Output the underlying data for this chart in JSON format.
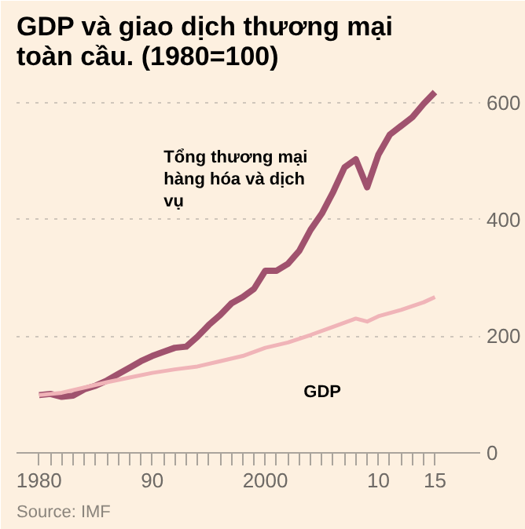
{
  "chart_data": {
    "type": "line",
    "title": "GDP và giao dịch thương mại toàn cầu. (1980=100)",
    "annotations": [
      "Source: IMF"
    ],
    "series": [
      {
        "name": "Tổng thương mại hàng hóa và dịch vụ",
        "color": "#a0526e",
        "x": [
          1980,
          1981,
          1982,
          1983,
          1984,
          1985,
          1986,
          1987,
          1988,
          1989,
          1990,
          1991,
          1992,
          1993,
          1994,
          1995,
          1996,
          1997,
          1998,
          1999,
          2000,
          2001,
          2002,
          2003,
          2004,
          2005,
          2006,
          2007,
          2008,
          2009,
          2010,
          2011,
          2012,
          2013,
          2014,
          2015
        ],
        "values": [
          99,
          101,
          96,
          98,
          109,
          115,
          124,
          135,
          146,
          157,
          166,
          173,
          180,
          182,
          199,
          219,
          236,
          256,
          267,
          281,
          312,
          312,
          324,
          346,
          382,
          410,
          447,
          489,
          503,
          455,
          511,
          545,
          560,
          575,
          598,
          618
        ]
      },
      {
        "name": "GDP",
        "color": "#f0b4b8",
        "x": [
          1980,
          1982,
          1984,
          1986,
          1988,
          1990,
          1992,
          1994,
          1996,
          1998,
          2000,
          2002,
          2004,
          2006,
          2008,
          2009,
          2010,
          2012,
          2014,
          2015
        ],
        "values": [
          99,
          103,
          112,
          121,
          129,
          137,
          143,
          148,
          157,
          166,
          180,
          189,
          202,
          216,
          230,
          225,
          234,
          245,
          258,
          267
        ]
      }
    ],
    "xlim": [
      1978,
      2019
    ],
    "ylim": [
      0,
      640
    ],
    "xticks": [
      {
        "value": 1980,
        "label": "1980"
      },
      {
        "value": 1981,
        "label": null
      },
      {
        "value": 1982,
        "label": null
      },
      {
        "value": 1983,
        "label": null
      },
      {
        "value": 1984,
        "label": null
      },
      {
        "value": 1985,
        "label": null
      },
      {
        "value": 1986,
        "label": null
      },
      {
        "value": 1987,
        "label": null
      },
      {
        "value": 1988,
        "label": null
      },
      {
        "value": 1989,
        "label": null
      },
      {
        "value": 1990,
        "label": "90"
      },
      {
        "value": 1991,
        "label": null
      },
      {
        "value": 1992,
        "label": null
      },
      {
        "value": 1993,
        "label": null
      },
      {
        "value": 1994,
        "label": null
      },
      {
        "value": 1995,
        "label": null
      },
      {
        "value": 1996,
        "label": null
      },
      {
        "value": 1997,
        "label": null
      },
      {
        "value": 1998,
        "label": null
      },
      {
        "value": 1999,
        "label": null
      },
      {
        "value": 2000,
        "label": "2000"
      },
      {
        "value": 2001,
        "label": null
      },
      {
        "value": 2002,
        "label": null
      },
      {
        "value": 2003,
        "label": null
      },
      {
        "value": 2004,
        "label": null
      },
      {
        "value": 2005,
        "label": null
      },
      {
        "value": 2006,
        "label": null
      },
      {
        "value": 2007,
        "label": null
      },
      {
        "value": 2008,
        "label": null
      },
      {
        "value": 2009,
        "label": null
      },
      {
        "value": 2010,
        "label": "10"
      },
      {
        "value": 2011,
        "label": null
      },
      {
        "value": 2012,
        "label": null
      },
      {
        "value": 2013,
        "label": null
      },
      {
        "value": 2014,
        "label": null
      },
      {
        "value": 2015,
        "label": "15"
      }
    ],
    "yticks": [
      0,
      200,
      400,
      600
    ],
    "grid": "y",
    "legend": false,
    "marker": "none",
    "line_style": "solid"
  }
}
